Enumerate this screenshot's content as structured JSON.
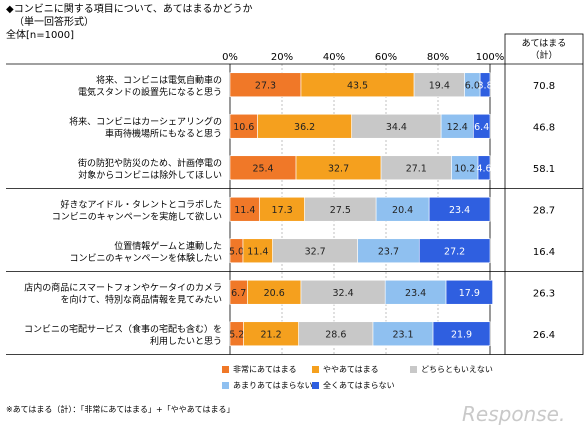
{
  "header": {
    "title": "◆コンビニに関する項目について、あてはまるかどうか",
    "subtitle": "（単一回答形式）",
    "base": "全体[n=1000]"
  },
  "chart_data": {
    "type": "bar",
    "orientation": "horizontal",
    "stacked": true,
    "x_ticks": [
      "0%",
      "20%",
      "40%",
      "60%",
      "80%",
      "100%"
    ],
    "xlim": [
      0,
      100
    ],
    "categories": [
      [
        "将来、コンビニは電気自動車の",
        "電気スタンドの設置先になると思う"
      ],
      [
        "将来、コンビニはカーシェアリングの",
        "車両待機場所にもなると思う"
      ],
      [
        "街の防犯や防災のため、計画停電の",
        "対象からコンビニは除外してほしい"
      ],
      [
        "好きなアイドル・タレントとコラボした",
        "コンビニのキャンペーンを実施して欲しい"
      ],
      [
        "位置情報ゲームと連動した",
        "コンビニのキャンペーンを体験したい"
      ],
      [
        "店内の商品にスマートフォンやケータイのカメラ",
        "を向けて、特別な商品情報を見てみたい"
      ],
      [
        "コンビニの宅配サービス（食事の宅配も含む）を",
        "利用したいと思う"
      ]
    ],
    "series": [
      {
        "name": "非常にあてはまる",
        "color": "#f07828",
        "values": [
          27.3,
          10.6,
          25.4,
          11.4,
          5.0,
          6.7,
          5.2
        ]
      },
      {
        "name": "ややあてはまる",
        "color": "#f5a01e",
        "values": [
          43.5,
          36.2,
          32.7,
          17.3,
          11.4,
          20.6,
          21.2
        ]
      },
      {
        "name": "どちらともいえない",
        "color": "#c8c8c8",
        "values": [
          19.4,
          34.4,
          27.1,
          27.5,
          32.7,
          32.4,
          28.6
        ]
      },
      {
        "name": "あまりあてはまらない",
        "color": "#8fc0f0",
        "values": [
          6.0,
          12.4,
          10.2,
          20.4,
          23.7,
          23.4,
          23.1
        ]
      },
      {
        "name": "全くあてはまらない",
        "color": "#2f5fe0",
        "values": [
          3.8,
          6.4,
          4.6,
          23.4,
          27.2,
          17.9,
          21.9
        ]
      }
    ],
    "side_column": {
      "header": [
        "あてはまる",
        "（計）"
      ],
      "values": [
        "70.8",
        "46.8",
        "58.1",
        "28.7",
        "16.4",
        "26.3",
        "26.4"
      ]
    },
    "legend_position": "bottom"
  },
  "footnote": "※あてはまる（計）：「非常にあてはまる」+「ややあてはまる」",
  "watermark": "Response."
}
